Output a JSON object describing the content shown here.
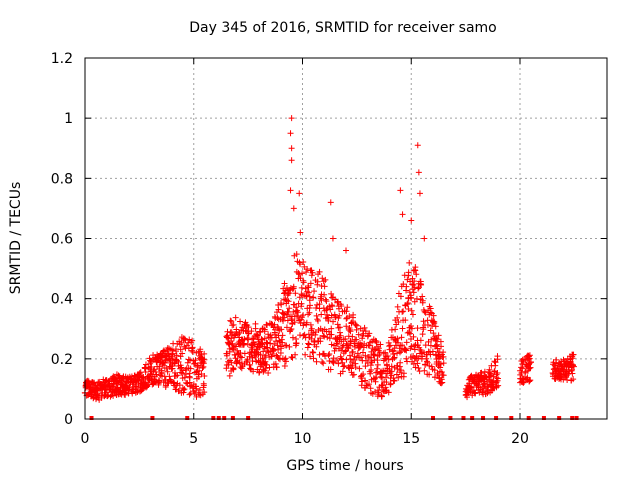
{
  "chart_data": {
    "type": "scatter",
    "title": "Day 345 of 2016, SRMTID for receiver samo",
    "xlabel": "GPS time / hours",
    "ylabel": "SRMTID / TECUs",
    "xlim": [
      0,
      24
    ],
    "ylim": [
      0,
      1.2
    ],
    "xticks": [
      0,
      5,
      10,
      15,
      20
    ],
    "xtick_labels": [
      "0",
      "5",
      "10",
      "15",
      "20"
    ],
    "yticks": [
      0,
      0.2,
      0.4,
      0.6,
      0.8,
      1,
      1.2
    ],
    "ytick_labels": [
      "0",
      "0.2",
      "0.4",
      "0.6",
      "0.8",
      "1",
      "1.2"
    ],
    "grid": true,
    "series": [
      {
        "name": "SRMTID",
        "marker": "+",
        "color": "#ff0000",
        "envelope_x": [
          0,
          0.5,
          1,
          1.5,
          2,
          2.5,
          3,
          3.5,
          4,
          4.5,
          5,
          5.5,
          6,
          6.5,
          7,
          7.5,
          8,
          8.5,
          9,
          9.5,
          10,
          10.5,
          11,
          11.5,
          12,
          12.5,
          13,
          13.5,
          14,
          14.5,
          15,
          15.5,
          16,
          16.5,
          17,
          17.5,
          18,
          18.5,
          19,
          19.5,
          20,
          20.5,
          21,
          21.5,
          22,
          22.5
        ],
        "envelope_low": [
          0.08,
          0.06,
          0.07,
          0.08,
          0.08,
          0.09,
          0.11,
          0.11,
          0.1,
          0.08,
          0.07,
          0.08,
          null,
          0.13,
          0.16,
          0.16,
          0.15,
          0.15,
          0.16,
          0.2,
          0.2,
          0.18,
          0.17,
          0.15,
          0.15,
          0.13,
          0.08,
          0.07,
          0.08,
          0.12,
          0.18,
          0.15,
          0.14,
          0.1,
          null,
          0.07,
          0.08,
          0.08,
          0.1,
          null,
          0.12,
          0.12,
          null,
          0.13,
          0.13,
          0.12
        ],
        "envelope_high": [
          0.13,
          0.12,
          0.14,
          0.15,
          0.14,
          0.15,
          0.21,
          0.22,
          0.25,
          0.28,
          0.26,
          0.22,
          null,
          0.32,
          0.36,
          0.35,
          0.3,
          0.32,
          0.4,
          0.55,
          0.55,
          0.5,
          0.48,
          0.4,
          0.38,
          0.33,
          0.3,
          0.25,
          0.26,
          0.45,
          0.55,
          0.45,
          0.35,
          0.22,
          null,
          0.14,
          0.15,
          0.16,
          0.22,
          null,
          0.2,
          0.22,
          null,
          0.2,
          0.2,
          0.22
        ],
        "peaks": [
          {
            "x": 9.5,
            "y": 1.0
          },
          {
            "x": 9.45,
            "y": 0.95
          },
          {
            "x": 9.5,
            "y": 0.9
          },
          {
            "x": 9.5,
            "y": 0.86
          },
          {
            "x": 9.45,
            "y": 0.76
          },
          {
            "x": 9.6,
            "y": 0.7
          },
          {
            "x": 9.85,
            "y": 0.75
          },
          {
            "x": 9.9,
            "y": 0.62
          },
          {
            "x": 11.3,
            "y": 0.72
          },
          {
            "x": 11.4,
            "y": 0.6
          },
          {
            "x": 12,
            "y": 0.56
          },
          {
            "x": 14.5,
            "y": 0.76
          },
          {
            "x": 14.6,
            "y": 0.68
          },
          {
            "x": 15.0,
            "y": 0.66
          },
          {
            "x": 15.3,
            "y": 0.91
          },
          {
            "x": 15.35,
            "y": 0.82
          },
          {
            "x": 15.4,
            "y": 0.75
          },
          {
            "x": 15.6,
            "y": 0.6
          }
        ],
        "zero_markers_x": [
          0.3,
          3.1,
          4.7,
          5.9,
          6.15,
          6.4,
          6.8,
          7.5,
          16.0,
          16.8,
          17.4,
          17.8,
          18.3,
          18.9,
          19.6,
          20.4,
          21.1,
          21.8,
          22.4,
          22.6
        ]
      }
    ]
  }
}
